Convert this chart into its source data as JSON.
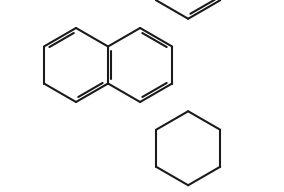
{
  "bg_color": "#ffffff",
  "line_color": "#1a1a1a",
  "N_color": "#b8860b",
  "lw": 1.5,
  "fig_width": 2.84,
  "fig_height": 1.92,
  "dpi": 100
}
